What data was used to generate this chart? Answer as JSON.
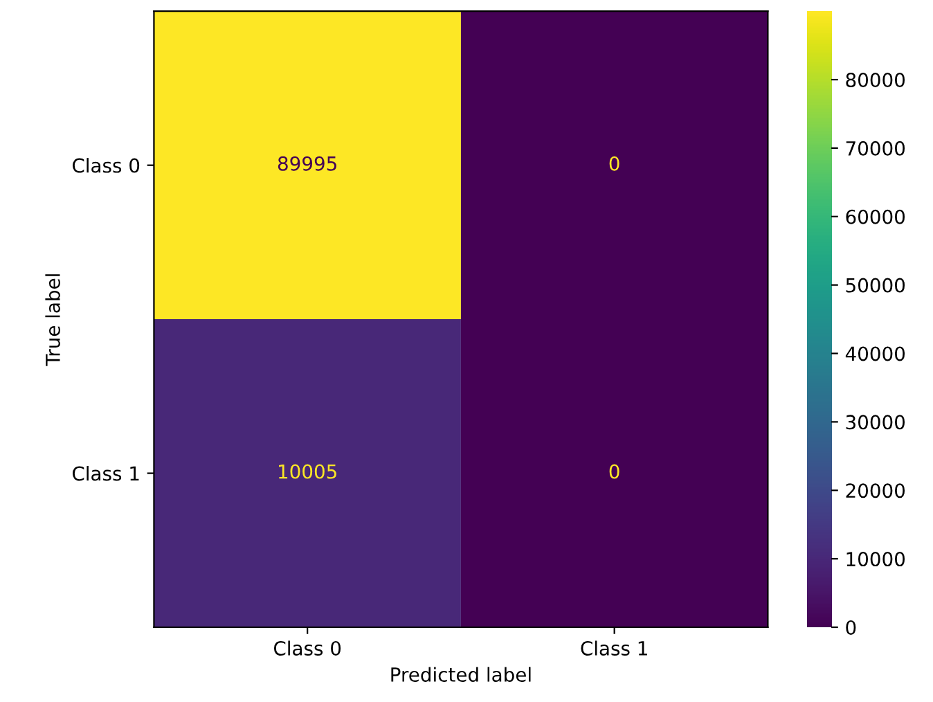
{
  "chart_data": {
    "type": "heatmap",
    "xlabel": "Predicted label",
    "ylabel": "True label",
    "categories": [
      "Class 0",
      "Class 1"
    ],
    "y_categories": [
      "Class 0",
      "Class 1"
    ],
    "cells": [
      [
        89995,
        0
      ],
      [
        10005,
        0
      ]
    ],
    "clim": [
      0,
      89995
    ],
    "cticks": [
      0,
      10000,
      20000,
      30000,
      40000,
      50000,
      60000,
      70000,
      80000
    ],
    "data_labels": true,
    "grid": false
  }
}
